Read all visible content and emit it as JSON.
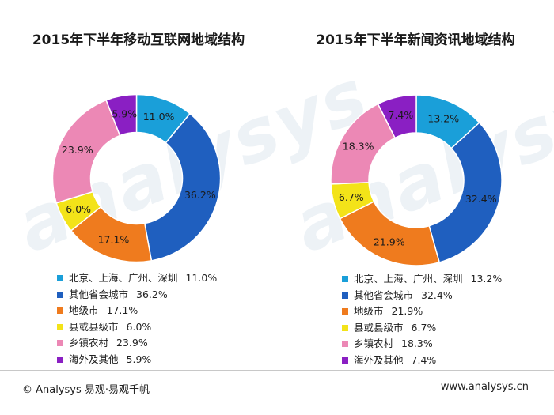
{
  "watermark": "analysys",
  "chart_data": [
    {
      "type": "pie",
      "title": "2015年下半年移动互联网地域结构",
      "categories": [
        "北京、上海、广州、深圳",
        "其他省会城市",
        "地级市",
        "县或县级市",
        "乡镇农村",
        "海外及其他"
      ],
      "values": [
        11.0,
        36.2,
        17.1,
        6.0,
        23.9,
        5.9
      ],
      "labels": [
        "11.0%",
        "36.2%",
        "17.1%",
        "6.0%",
        "23.9%",
        "5.9%"
      ],
      "colors": [
        "#1a9fd9",
        "#1f5fbf",
        "#ef7b1e",
        "#f3e319",
        "#ec88b5",
        "#8a1fc3"
      ],
      "legend": "bottom"
    },
    {
      "type": "pie",
      "title": "2015年下半年新闻资讯地域结构",
      "categories": [
        "北京、上海、广州、深圳",
        "其他省会城市",
        "地级市",
        "县或县级市",
        "乡镇农村",
        "海外及其他"
      ],
      "values": [
        13.2,
        32.4,
        21.9,
        6.7,
        18.3,
        7.4
      ],
      "labels": [
        "13.2%",
        "32.4%",
        "21.9%",
        "6.7%",
        "18.3%",
        "7.4%"
      ],
      "colors": [
        "#1a9fd9",
        "#1f5fbf",
        "#ef7b1e",
        "#f3e319",
        "#ec88b5",
        "#8a1fc3"
      ],
      "legend": "bottom"
    }
  ],
  "footer": {
    "left": "© Analysys 易观·易观千帆",
    "right": "www.analysys.cn"
  }
}
